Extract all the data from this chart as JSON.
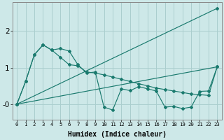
{
  "xlabel": "Humidex (Indice chaleur)",
  "background_color": "#cde8e8",
  "line_color": "#1a7a6e",
  "grid_color": "#aacece",
  "xlim": [
    -0.5,
    23.5
  ],
  "ylim": [
    -0.42,
    2.78
  ],
  "upper_line_x": [
    0,
    23
  ],
  "upper_line_y": [
    0.0,
    2.62
  ],
  "lower_line_x": [
    0,
    23
  ],
  "lower_line_y": [
    0.0,
    1.02
  ],
  "series_zigzag_x": [
    0,
    1,
    2,
    3,
    4,
    5,
    6,
    7,
    8,
    9,
    10,
    11,
    12,
    13,
    14,
    15,
    16,
    17,
    18,
    19,
    20,
    21,
    22,
    23
  ],
  "series_zigzag_y": [
    0.0,
    0.62,
    1.35,
    1.62,
    1.48,
    1.52,
    1.45,
    1.08,
    0.85,
    0.88,
    -0.08,
    -0.16,
    0.42,
    0.37,
    0.48,
    0.42,
    0.36,
    -0.08,
    -0.06,
    -0.12,
    -0.08,
    0.35,
    0.36,
    1.02
  ],
  "series_declining_x": [
    0,
    1,
    2,
    3,
    4,
    5,
    6,
    7,
    8,
    9,
    10,
    11,
    12,
    13,
    14,
    15,
    16,
    17,
    18,
    19,
    20,
    21,
    22,
    23
  ],
  "series_declining_y": [
    0.0,
    0.62,
    1.35,
    1.62,
    1.48,
    1.28,
    1.08,
    1.05,
    0.88,
    0.85,
    0.8,
    0.74,
    0.68,
    0.62,
    0.56,
    0.5,
    0.44,
    0.4,
    0.36,
    0.32,
    0.28,
    0.26,
    0.24,
    1.02
  ],
  "xticks": [
    0,
    1,
    2,
    3,
    4,
    5,
    6,
    7,
    8,
    9,
    10,
    11,
    12,
    13,
    14,
    15,
    16,
    17,
    18,
    19,
    20,
    21,
    22,
    23
  ],
  "yticks": [
    0,
    1,
    2
  ],
  "ytick_labels": [
    "-0",
    "1",
    "2"
  ]
}
